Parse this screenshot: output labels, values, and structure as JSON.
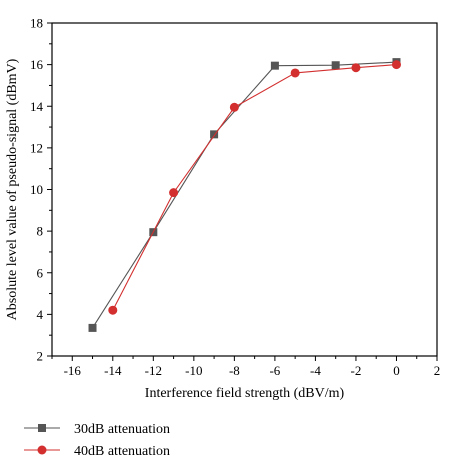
{
  "chart_data": {
    "type": "line",
    "xlabel": "Interference field strength (dBV/m)",
    "ylabel": "Absolute level value of pseudo-signal (dBmV)",
    "xlim": [
      -17,
      2
    ],
    "ylim": [
      2,
      18
    ],
    "xticks": [
      -16,
      -14,
      -12,
      -10,
      -8,
      -6,
      -4,
      -2,
      0,
      2
    ],
    "yticks": [
      2,
      4,
      6,
      8,
      10,
      12,
      14,
      16,
      18
    ],
    "legend_position": "bottom-left, below plot",
    "grid": false,
    "series": [
      {
        "name": "30dB attenuation",
        "marker": "square",
        "color": "#555555",
        "x": [
          -15,
          -12,
          -9,
          -6,
          -3,
          0
        ],
        "y": [
          3.35,
          7.95,
          12.65,
          15.95,
          15.97,
          16.12
        ]
      },
      {
        "name": "40dB attenuation",
        "marker": "circle",
        "color": "#d32f2f",
        "x": [
          -14,
          -11,
          -8,
          -5,
          -2,
          0
        ],
        "y": [
          4.2,
          9.85,
          13.95,
          15.6,
          15.85,
          16.0
        ]
      }
    ]
  }
}
